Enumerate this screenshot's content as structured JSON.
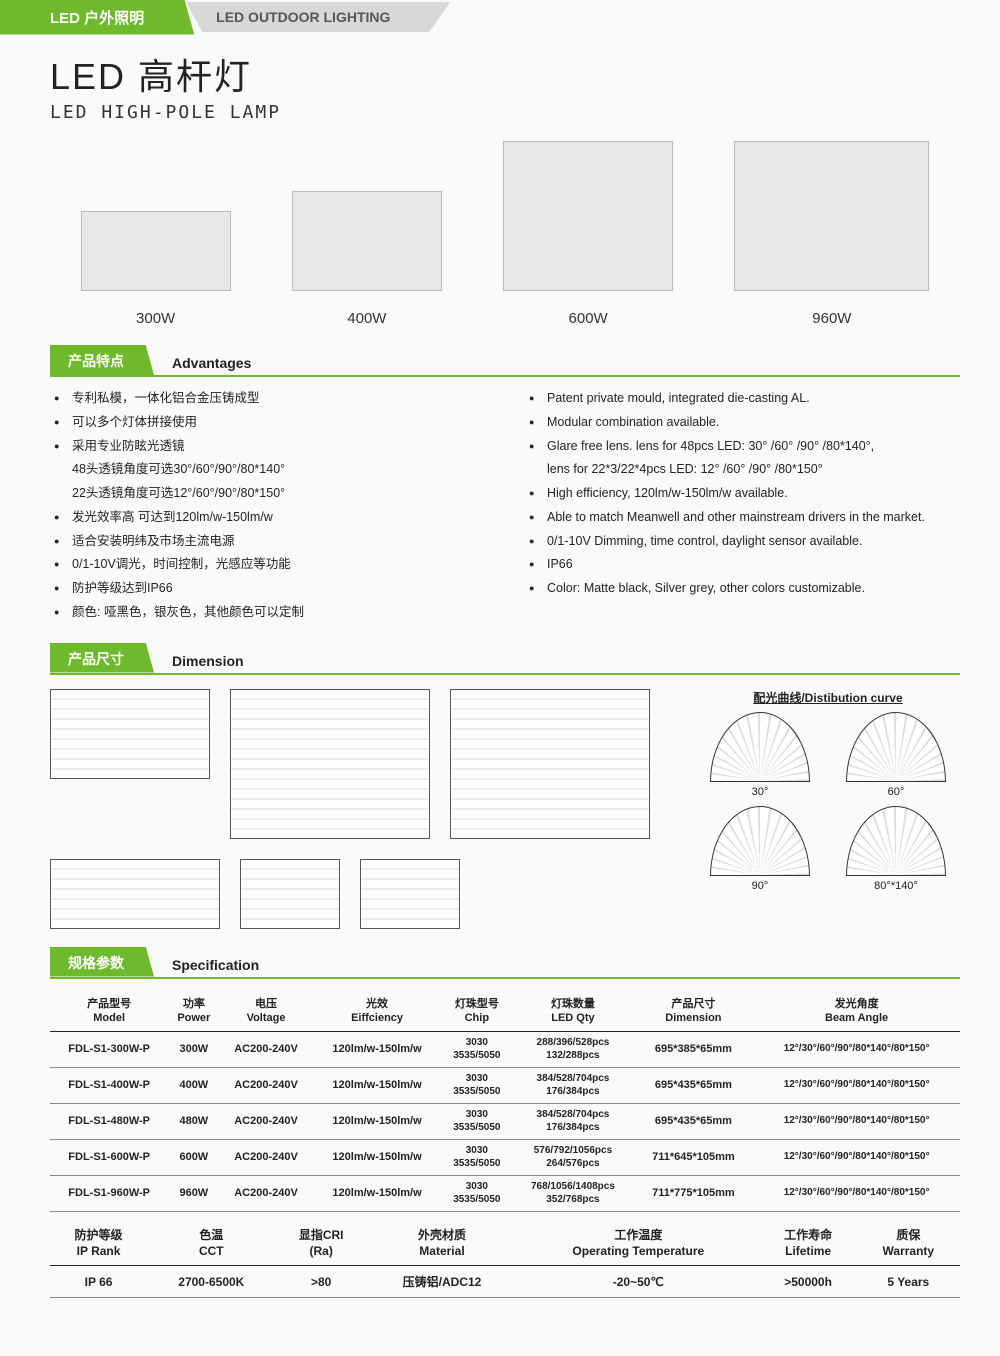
{
  "header": {
    "tab_cn": "LED 户外照明",
    "tab_en": "LED OUTDOOR LIGHTING"
  },
  "title": {
    "cn": "LED 高杆灯",
    "en": "LED HIGH-POLE LAMP"
  },
  "products": [
    {
      "label": "300W",
      "class": "prod-300"
    },
    {
      "label": "400W",
      "class": "prod-400"
    },
    {
      "label": "600W",
      "class": "prod-600"
    },
    {
      "label": "960W",
      "class": "prod-960"
    }
  ],
  "sections": {
    "advantages": {
      "tab": "产品特点",
      "label": "Advantages"
    },
    "dimension": {
      "tab": "产品尺寸",
      "label": "Dimension"
    },
    "specification": {
      "tab": "规格参数",
      "label": "Specification"
    }
  },
  "advantages_cn": [
    "专利私模，一体化铝合金压铸成型",
    "可以多个灯体拼接使用",
    "采用专业防眩光透镜",
    "48头透镜角度可选30°/60°/90°/80*140°",
    "22头透镜角度可选12°/60°/90°/80*150°",
    "发光效率高 可达到120lm/w-150lm/w",
    "适合安装明纬及市场主流电源",
    "0/1-10V调光，时间控制，光感应等功能",
    "防护等级达到IP66",
    "颜色: 哑黑色，银灰色，其他颜色可以定制"
  ],
  "advantages_en": [
    "Patent private mould, integrated die-casting AL.",
    "Modular combination available.",
    "Glare free lens. lens for 48pcs LED: 30° /60° /90° /80*140°,",
    "lens for 22*3/22*4pcs LED: 12° /60° /90° /80*150°",
    "High efficiency, 120lm/w-150lm/w available.",
    "Able to match Meanwell and other mainstream drivers in the market.",
    "0/1-10V Dimming, time control, daylight sensor available.",
    "IP66",
    "Color: Matte black, Silver grey, other colors customizable."
  ],
  "dist_title": "配光曲线/Distibution curve",
  "dist_items": [
    "30°",
    "60°",
    "90°",
    "80°*140°"
  ],
  "spec_headers": [
    {
      "cn": "产品型号",
      "en": "Model"
    },
    {
      "cn": "功率",
      "en": "Power"
    },
    {
      "cn": "电压",
      "en": "Voltage"
    },
    {
      "cn": "光效",
      "en": "Eiffciency"
    },
    {
      "cn": "灯珠型号",
      "en": "Chip"
    },
    {
      "cn": "灯珠数量",
      "en": "LED Qty"
    },
    {
      "cn": "产品尺寸",
      "en": "Dimension"
    },
    {
      "cn": "发光角度",
      "en": "Beam Angle"
    }
  ],
  "spec_rows": [
    {
      "model": "FDL-S1-300W-P",
      "power": "300W",
      "voltage": "AC200-240V",
      "eff": "120lm/w-150lm/w",
      "chip": "3030\n3535/5050",
      "qty": "288/396/528pcs\n132/288pcs",
      "dim": "695*385*65mm",
      "angle": "12°/30°/60°/90°/80*140°/80*150°"
    },
    {
      "model": "FDL-S1-400W-P",
      "power": "400W",
      "voltage": "AC200-240V",
      "eff": "120lm/w-150lm/w",
      "chip": "3030\n3535/5050",
      "qty": "384/528/704pcs\n176/384pcs",
      "dim": "695*435*65mm",
      "angle": "12°/30°/60°/90°/80*140°/80*150°"
    },
    {
      "model": "FDL-S1-480W-P",
      "power": "480W",
      "voltage": "AC200-240V",
      "eff": "120lm/w-150lm/w",
      "chip": "3030\n3535/5050",
      "qty": "384/528/704pcs\n176/384pcs",
      "dim": "695*435*65mm",
      "angle": "12°/30°/60°/90°/80*140°/80*150°"
    },
    {
      "model": "FDL-S1-600W-P",
      "power": "600W",
      "voltage": "AC200-240V",
      "eff": "120lm/w-150lm/w",
      "chip": "3030\n3535/5050",
      "qty": "576/792/1056pcs\n264/576pcs",
      "dim": "711*645*105mm",
      "angle": "12°/30°/60°/90°/80*140°/80*150°"
    },
    {
      "model": "FDL-S1-960W-P",
      "power": "960W",
      "voltage": "AC200-240V",
      "eff": "120lm/w-150lm/w",
      "chip": "3030\n3535/5050",
      "qty": "768/1056/1408pcs\n352/768pcs",
      "dim": "711*775*105mm",
      "angle": "12°/30°/60°/90°/80*140°/80*150°"
    }
  ],
  "spec2_headers": [
    {
      "cn": "防护等级",
      "en": "IP Rank"
    },
    {
      "cn": "色温",
      "en": "CCT"
    },
    {
      "cn": "显指CRI",
      "en": "(Ra)"
    },
    {
      "cn": "外壳材质",
      "en": "Material"
    },
    {
      "cn": "工作温度",
      "en": "Operating Temperature"
    },
    {
      "cn": "工作寿命",
      "en": "Lifetime"
    },
    {
      "cn": "质保",
      "en": "Warranty"
    }
  ],
  "spec2_row": {
    "ip": "IP 66",
    "cct": "2700-6500K",
    "cri": ">80",
    "material": "压铸铝/ADC12",
    "temp": "-20~50℃",
    "life": ">50000h",
    "warranty": "5 Years"
  },
  "colors": {
    "green": "#6fb92c",
    "grey": "#d8d8d8"
  }
}
